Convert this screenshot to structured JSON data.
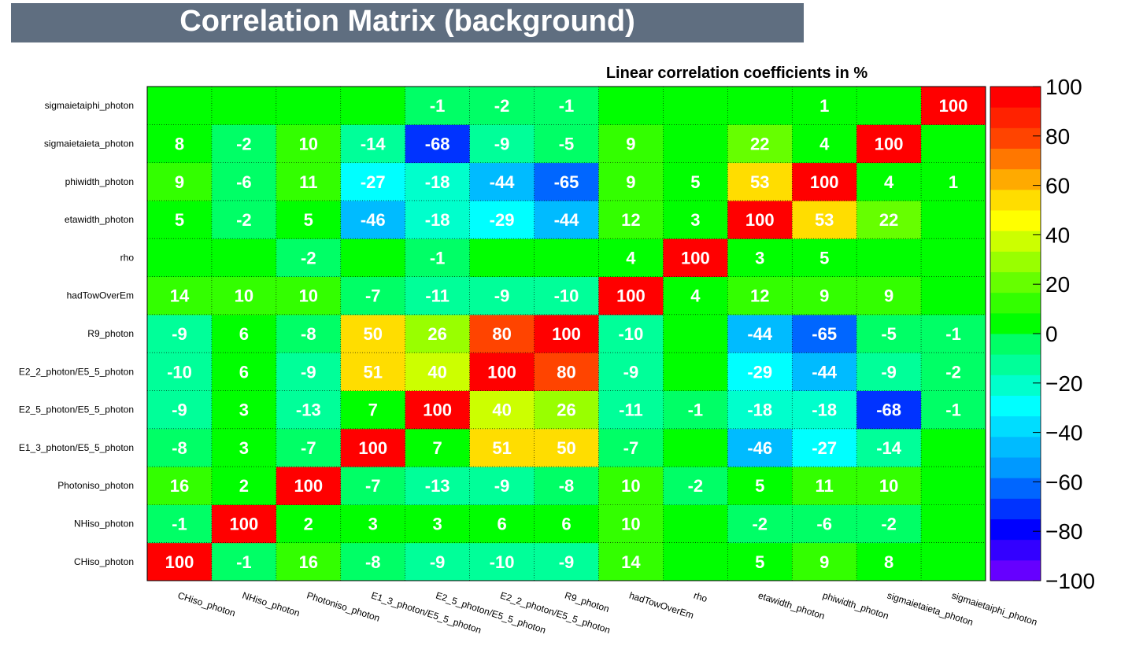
{
  "title": "Correlation Matrix (background)",
  "chart_data": {
    "type": "heatmap",
    "title": "Correlation Matrix (background)",
    "subtitle": "Linear correlation coefficients in %",
    "variables": [
      "CHiso_photon",
      "NHiso_photon",
      "Photoniso_photon",
      "E1_3_photon/E5_5_photon",
      "E2_5_photon/E5_5_photon",
      "E2_2_photon/E5_5_photon",
      "R9_photon",
      "hadTowOverEm",
      "rho",
      "etawidth_photon",
      "phiwidth_photon",
      "sigmaietaieta_photon",
      "sigmaietaiphi_photon"
    ],
    "matrix": [
      [
        100,
        -1,
        16,
        -8,
        -9,
        -10,
        -9,
        14,
        0,
        5,
        9,
        8,
        0
      ],
      [
        -1,
        100,
        2,
        3,
        3,
        6,
        6,
        10,
        0,
        -2,
        -6,
        -2,
        0
      ],
      [
        16,
        2,
        100,
        -7,
        -13,
        -9,
        -8,
        10,
        -2,
        5,
        11,
        10,
        0
      ],
      [
        -8,
        3,
        -7,
        100,
        7,
        51,
        50,
        -7,
        0,
        -46,
        -27,
        -14,
        0
      ],
      [
        -9,
        3,
        -13,
        7,
        100,
        40,
        26,
        -11,
        -1,
        -18,
        -18,
        -68,
        -1
      ],
      [
        -10,
        6,
        -9,
        51,
        40,
        100,
        80,
        -9,
        0,
        -29,
        -44,
        -9,
        -2
      ],
      [
        -9,
        6,
        -8,
        50,
        26,
        80,
        100,
        -10,
        0,
        -44,
        -65,
        -5,
        -1
      ],
      [
        14,
        10,
        10,
        -7,
        -11,
        -9,
        -10,
        100,
        4,
        12,
        9,
        9,
        0
      ],
      [
        0,
        0,
        -2,
        0,
        -1,
        0,
        0,
        4,
        100,
        3,
        5,
        0,
        0
      ],
      [
        5,
        -2,
        5,
        -46,
        -18,
        -29,
        -44,
        12,
        3,
        100,
        53,
        22,
        0
      ],
      [
        9,
        -6,
        11,
        -27,
        -18,
        -44,
        -65,
        9,
        5,
        53,
        100,
        4,
        1
      ],
      [
        8,
        -2,
        10,
        -14,
        -68,
        -9,
        -5,
        9,
        0,
        22,
        4,
        100,
        0
      ],
      [
        0,
        0,
        0,
        0,
        -1,
        -2,
        -1,
        0,
        0,
        0,
        1,
        0,
        100
      ]
    ],
    "zlim": [
      -100,
      100
    ],
    "color_scale": {
      "ticks": [
        "100",
        "80",
        "60",
        "40",
        "20",
        "0",
        "−20",
        "−40",
        "−60",
        "−80",
        "−100"
      ],
      "bins": [
        "#6600ff",
        "#3300ff",
        "#0000ff",
        "#0033ff",
        "#0066ff",
        "#0099ff",
        "#00bbff",
        "#00ddff",
        "#00ffff",
        "#00ffcc",
        "#00ff99",
        "#00ff66",
        "#00ff00",
        "#33ff00",
        "#66ff00",
        "#99ff00",
        "#ccff00",
        "#ffff00",
        "#ffdd00",
        "#ffaa00",
        "#ff7700",
        "#ff4400",
        "#ff2200",
        "#ff0000"
      ]
    }
  }
}
